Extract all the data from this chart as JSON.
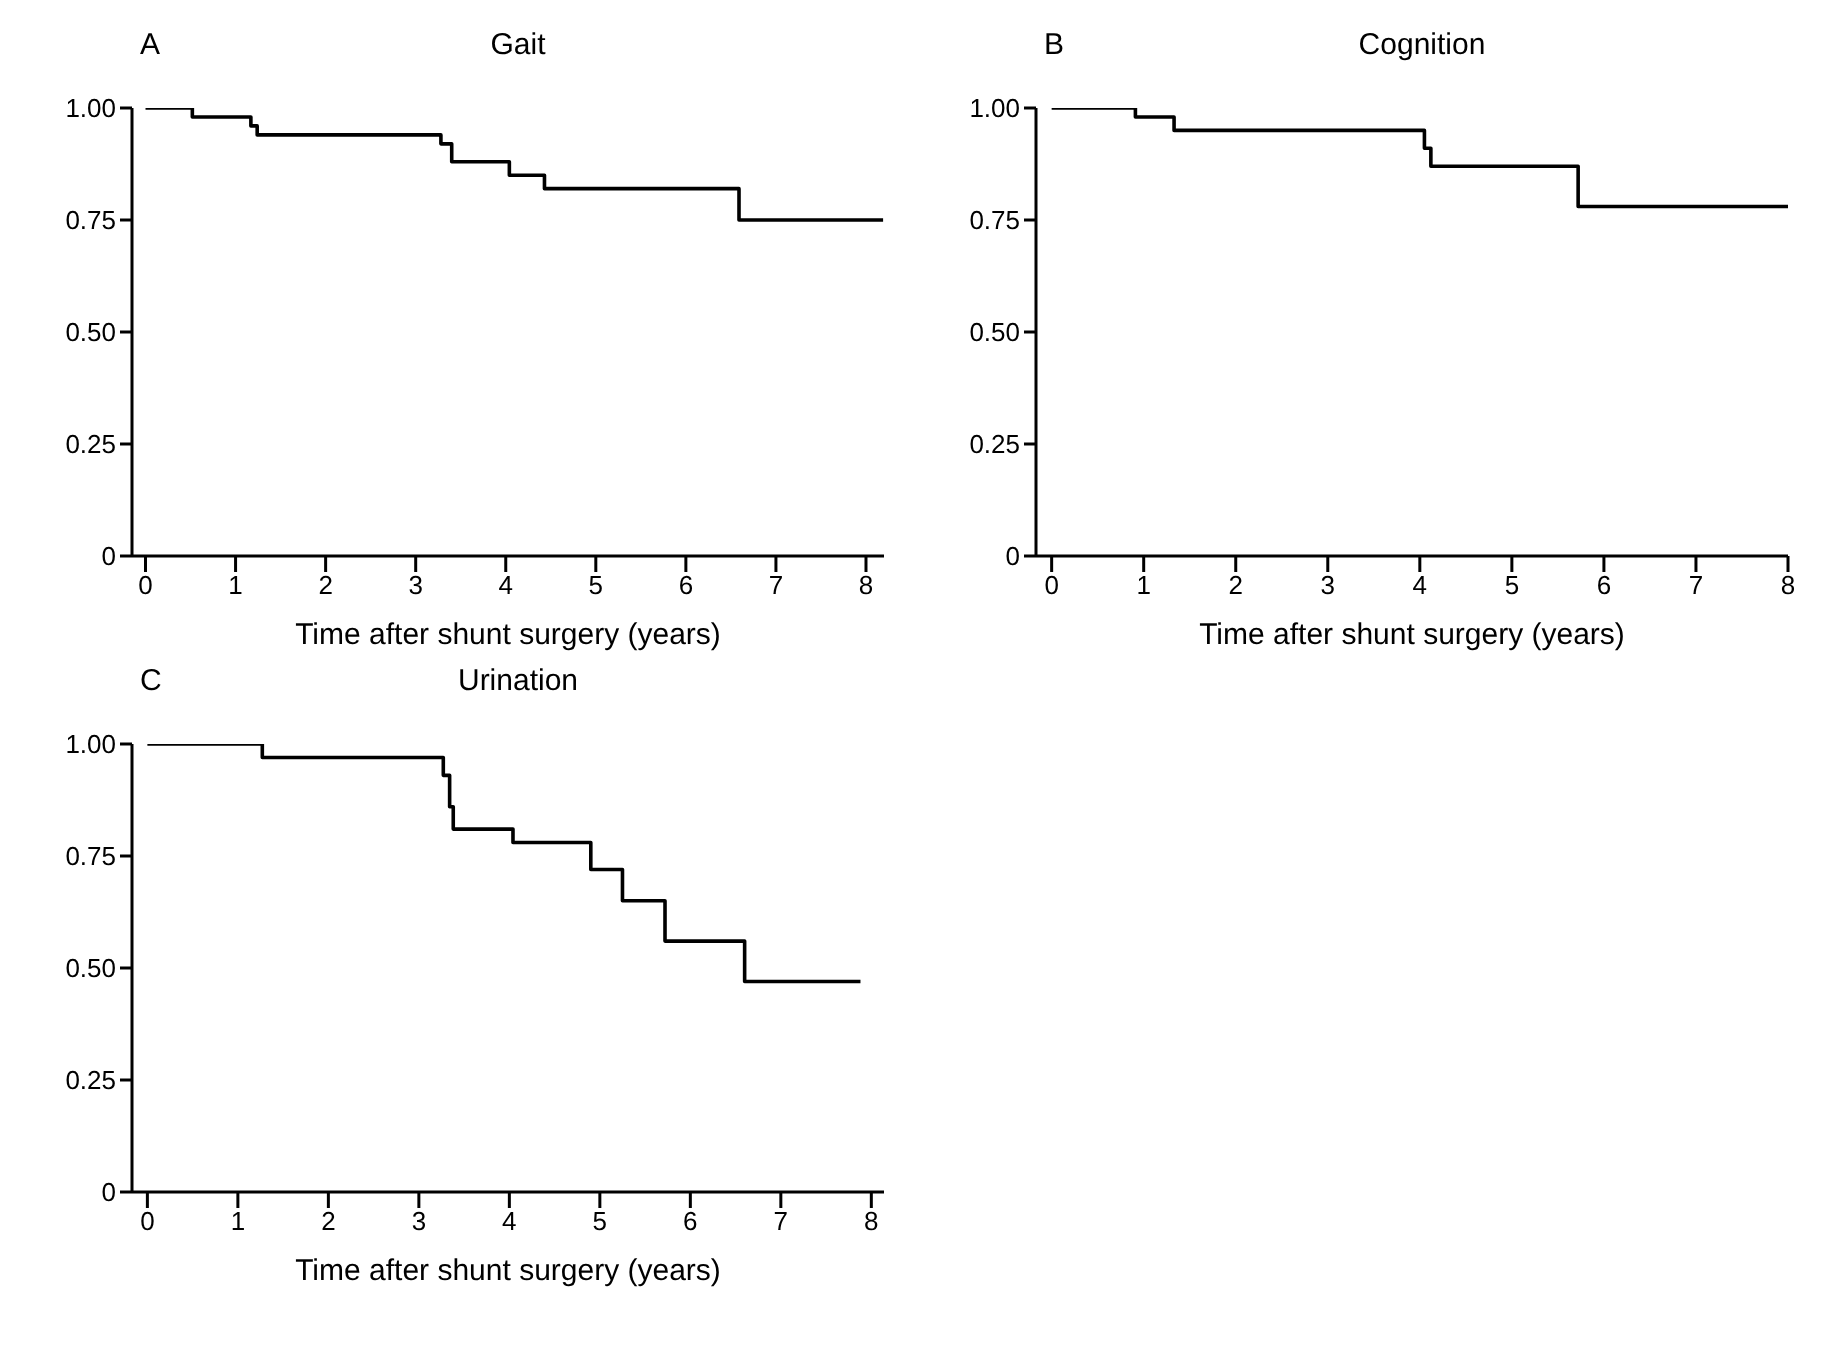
{
  "chart_data": [
    {
      "type": "step",
      "title": "Gait",
      "annotations": [
        "A"
      ],
      "xlabel": "Time after shunt surgery (years)",
      "x": [
        0,
        0.52,
        1.17,
        1.24,
        3.28,
        3.4,
        4.04,
        4.43,
        6.59,
        8.19
      ],
      "series": [
        {
          "color": "#000000",
          "values": [
            1,
            0.98,
            0.96,
            0.94,
            0.92,
            0.88,
            0.85,
            0.82,
            0.75,
            0.75
          ]
        }
      ],
      "xlim": [
        -0.15,
        8.2
      ],
      "xticks": [
        0,
        1,
        2,
        3,
        4,
        5,
        6,
        7,
        8
      ],
      "ylim": [
        0,
        1
      ],
      "yticks": [
        {
          "value": 0,
          "label": "0"
        },
        {
          "value": 0.25,
          "label": "0.25"
        },
        {
          "value": 0.5,
          "label": "0.50"
        },
        {
          "value": 0.75,
          "label": "0.75"
        },
        {
          "value": 1,
          "label": "1.00"
        }
      ],
      "grid": false,
      "legend": false,
      "marker": "none",
      "line_style": "solid"
    },
    {
      "type": "step",
      "title": "Cognition",
      "annotations": [
        "B"
      ],
      "xlabel": "Time after shunt surgery (years)",
      "x": [
        0,
        0.91,
        1.33,
        4.05,
        4.12,
        5.72,
        8.0
      ],
      "series": [
        {
          "color": "#000000",
          "values": [
            1,
            0.98,
            0.95,
            0.91,
            0.87,
            0.78,
            0.78
          ]
        }
      ],
      "xlim": [
        -0.17,
        8
      ],
      "xticks": [
        0,
        1,
        2,
        3,
        4,
        5,
        6,
        7,
        8
      ],
      "ylim": [
        0,
        1
      ],
      "yticks": [
        {
          "value": 0,
          "label": "0"
        },
        {
          "value": 0.25,
          "label": "0.25"
        },
        {
          "value": 0.5,
          "label": "0.50"
        },
        {
          "value": 0.75,
          "label": "0.75"
        },
        {
          "value": 1,
          "label": "1.00"
        }
      ],
      "grid": false,
      "legend": false,
      "marker": "none",
      "line_style": "solid"
    },
    {
      "type": "step",
      "title": "Urination",
      "annotations": [
        "C"
      ],
      "xlabel": "Time after shunt surgery (years)",
      "x": [
        0,
        1.27,
        3.27,
        3.34,
        3.38,
        4.04,
        4.9,
        5.25,
        5.72,
        6.6,
        7.88
      ],
      "series": [
        {
          "color": "#000000",
          "values": [
            1,
            0.97,
            0.93,
            0.86,
            0.81,
            0.78,
            0.72,
            0.65,
            0.56,
            0.47,
            0.47
          ]
        }
      ],
      "xlim": [
        -0.17,
        8.14
      ],
      "xticks": [
        0,
        1,
        2,
        3,
        4,
        5,
        6,
        7,
        8
      ],
      "ylim": [
        0,
        1
      ],
      "yticks": [
        {
          "value": 0,
          "label": "0"
        },
        {
          "value": 0.25,
          "label": "0.25"
        },
        {
          "value": 0.5,
          "label": "0.50"
        },
        {
          "value": 0.75,
          "label": "0.75"
        },
        {
          "value": 1,
          "label": "1.00"
        }
      ],
      "grid": false,
      "legend": false,
      "marker": "none",
      "line_style": "solid"
    }
  ]
}
